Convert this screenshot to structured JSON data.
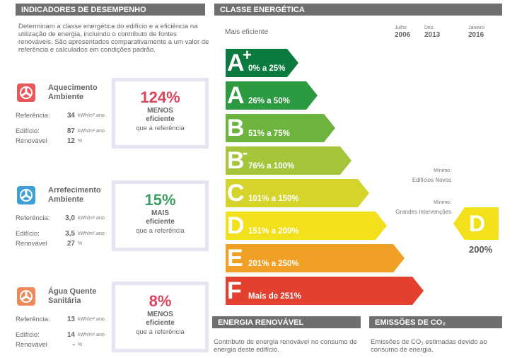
{
  "left": {
    "header": "INDICADORES DE DESEMPENHO",
    "intro": "Determinam a classe energética do edifício e a eficiência na utilização de energia, incluindo o contributo de fontes renováveis. São apresentados comparativamente a um valor de referência e calculados em condições padrão.",
    "indicators": [
      {
        "title": "Aquecimento Ambiente",
        "ref_label": "Referência:",
        "ref_value": "34",
        "ref_unit": "kWh/m².ano",
        "build_label": "Edifício:",
        "build_value": "87",
        "build_unit": "kWh/m².ano",
        "renew_label": "Renovável",
        "renew_value": "12",
        "renew_unit": "%",
        "percent": "124%",
        "word": "MENOS",
        "adj": "eficiente",
        "note": "que a referência",
        "color": "#d9455a"
      },
      {
        "title": "Arrefecimento Ambiente",
        "ref_label": "Referência:",
        "ref_value": "3,0",
        "ref_unit": "kWh/m².ano",
        "build_label": "Edifício:",
        "build_value": "3,5",
        "build_unit": "kWh/m².ano",
        "renew_label": "Renovável",
        "renew_value": "27",
        "renew_unit": "%",
        "percent": "15%",
        "word": "MAIS",
        "adj": "eficiente",
        "note": "que a referência",
        "color": "#3f9e64"
      },
      {
        "title": "Água Quente Sanitária",
        "ref_label": "Referência:",
        "ref_value": "13",
        "ref_unit": "kWh/m².ano",
        "build_label": "Edifício:",
        "build_value": "14",
        "build_unit": "kWh/m².ano",
        "renew_label": "Renovável",
        "renew_value": "-",
        "renew_unit": "%",
        "percent": "8%",
        "word": "MENOS",
        "adj": "eficiente",
        "note": "que a referência",
        "color": "#d9455a"
      }
    ]
  },
  "right": {
    "header": "CLASSE ENERGÉTICA",
    "top_label": "Mais eficiente",
    "dates": [
      {
        "month": "Julho",
        "year": "2006"
      },
      {
        "month": "Dez.",
        "year": "2013"
      },
      {
        "month": "Janeiro",
        "year": "2016"
      }
    ],
    "classes": [
      {
        "letter": "A",
        "mod": "+",
        "range": "0% a 25%",
        "color": "#0b7a3e"
      },
      {
        "letter": "A",
        "mod": "",
        "range": "26% a 50%",
        "color": "#2c9a40"
      },
      {
        "letter": "B",
        "mod": "",
        "range": "51% a 75%",
        "color": "#6cb33f"
      },
      {
        "letter": "B",
        "mod": "-",
        "range": "76% a 100%",
        "color": "#a5c63a"
      },
      {
        "letter": "C",
        "mod": "",
        "range": "101% a 150%",
        "color": "#d5d42c"
      },
      {
        "letter": "D",
        "mod": "",
        "range": "151% a 200%",
        "color": "#f2e01c"
      },
      {
        "letter": "E",
        "mod": "",
        "range": "201% a 250%",
        "color": "#f0a024"
      },
      {
        "letter": "F",
        "mod": "",
        "range": "Mais de 251%",
        "color": "#e2412f"
      }
    ],
    "notes": [
      {
        "label": "Mínimo:",
        "text": "Edifícios Novos"
      },
      {
        "label": "Mínimo:",
        "text": "Grandes Intervenções"
      }
    ],
    "rating": {
      "letter": "D",
      "percent": "200%",
      "color": "#f2e01c"
    }
  },
  "bottom": [
    {
      "header": "ENERGIA RENOVÁVEL",
      "text": "Contributo de energia renovável no consumo de energia deste edifício."
    },
    {
      "header": "EMISSÕES DE CO₂",
      "text": "Emissões de CO₂ estimadas devido ao consumo de energia."
    }
  ]
}
